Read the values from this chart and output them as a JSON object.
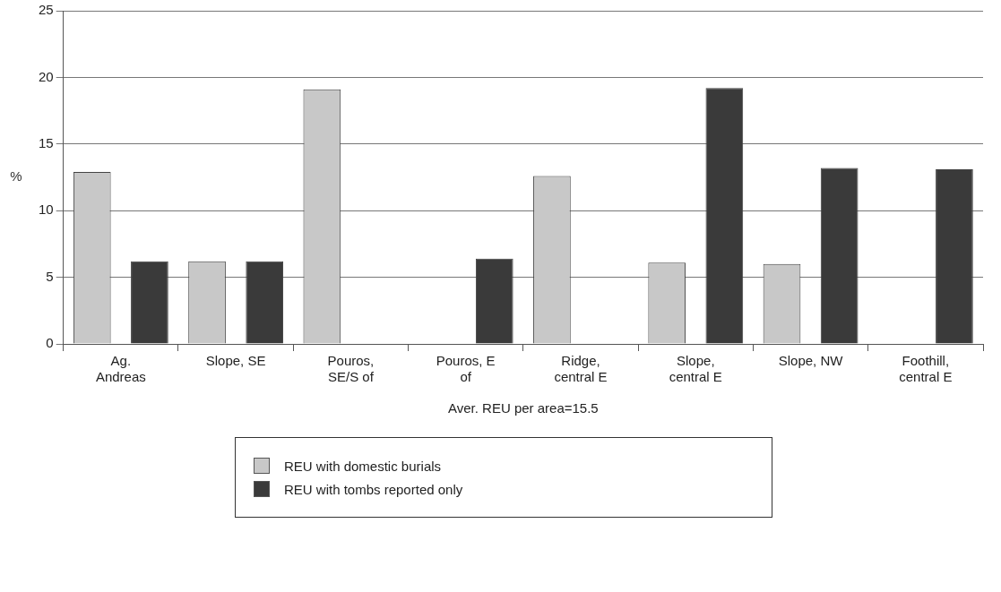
{
  "chart_data": {
    "type": "bar",
    "xlabel": "Aver. REU per area=15.5",
    "ylabel": "%",
    "categories": [
      "Ag. Andreas",
      "Slope, SE",
      "Pouros, SE/S of",
      "Pouros, E of",
      "Ridge, central E",
      "Slope, central E",
      "Slope, NW",
      "Foothill, central E"
    ],
    "series": [
      {
        "name": "REU with domestic burials",
        "color": "#c8c8c8",
        "values": [
          12.9,
          6.2,
          19.1,
          null,
          12.6,
          6.1,
          6.0,
          null
        ]
      },
      {
        "name": "REU with tombs reported only",
        "color": "#3a3a3a",
        "values": [
          6.2,
          6.2,
          null,
          6.4,
          null,
          19.2,
          13.2,
          13.1
        ]
      }
    ],
    "ylim": [
      0,
      25
    ],
    "yticks": [
      0,
      5,
      10,
      15,
      20,
      25
    ],
    "grid": "y",
    "legend": "bottom"
  }
}
